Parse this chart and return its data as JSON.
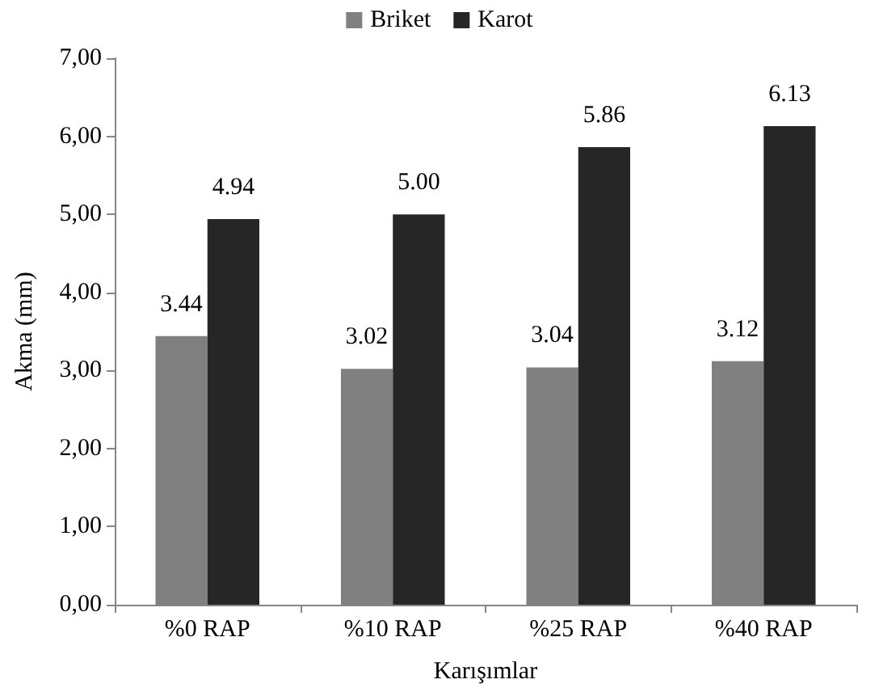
{
  "chart_data": {
    "type": "bar",
    "xlabel": "Karışımlar",
    "ylabel": "Akma (mm)",
    "categories": [
      "%0 RAP",
      "%10 RAP",
      "%25 RAP",
      "%40 RAP"
    ],
    "series": [
      {
        "name": "Briket",
        "color": "#808080",
        "values": [
          3.44,
          3.02,
          3.04,
          3.12
        ],
        "value_labels": [
          "3.44",
          "3.02",
          "3.04",
          "3.12"
        ]
      },
      {
        "name": "Karot",
        "color": "#262626",
        "values": [
          4.94,
          5.0,
          5.86,
          6.13
        ],
        "value_labels": [
          "4.94",
          "5.00",
          "5.86",
          "6.13"
        ]
      }
    ],
    "ylim": [
      0,
      7
    ],
    "yticks": [
      {
        "value": 0,
        "label": "0,00"
      },
      {
        "value": 1,
        "label": "1,00"
      },
      {
        "value": 2,
        "label": "2,00"
      },
      {
        "value": 3,
        "label": "3,00"
      },
      {
        "value": 4,
        "label": "4,00"
      },
      {
        "value": 5,
        "label": "5,00"
      },
      {
        "value": 6,
        "label": "6,00"
      },
      {
        "value": 7,
        "label": "7,00"
      }
    ],
    "grid": false,
    "legend": "top"
  }
}
